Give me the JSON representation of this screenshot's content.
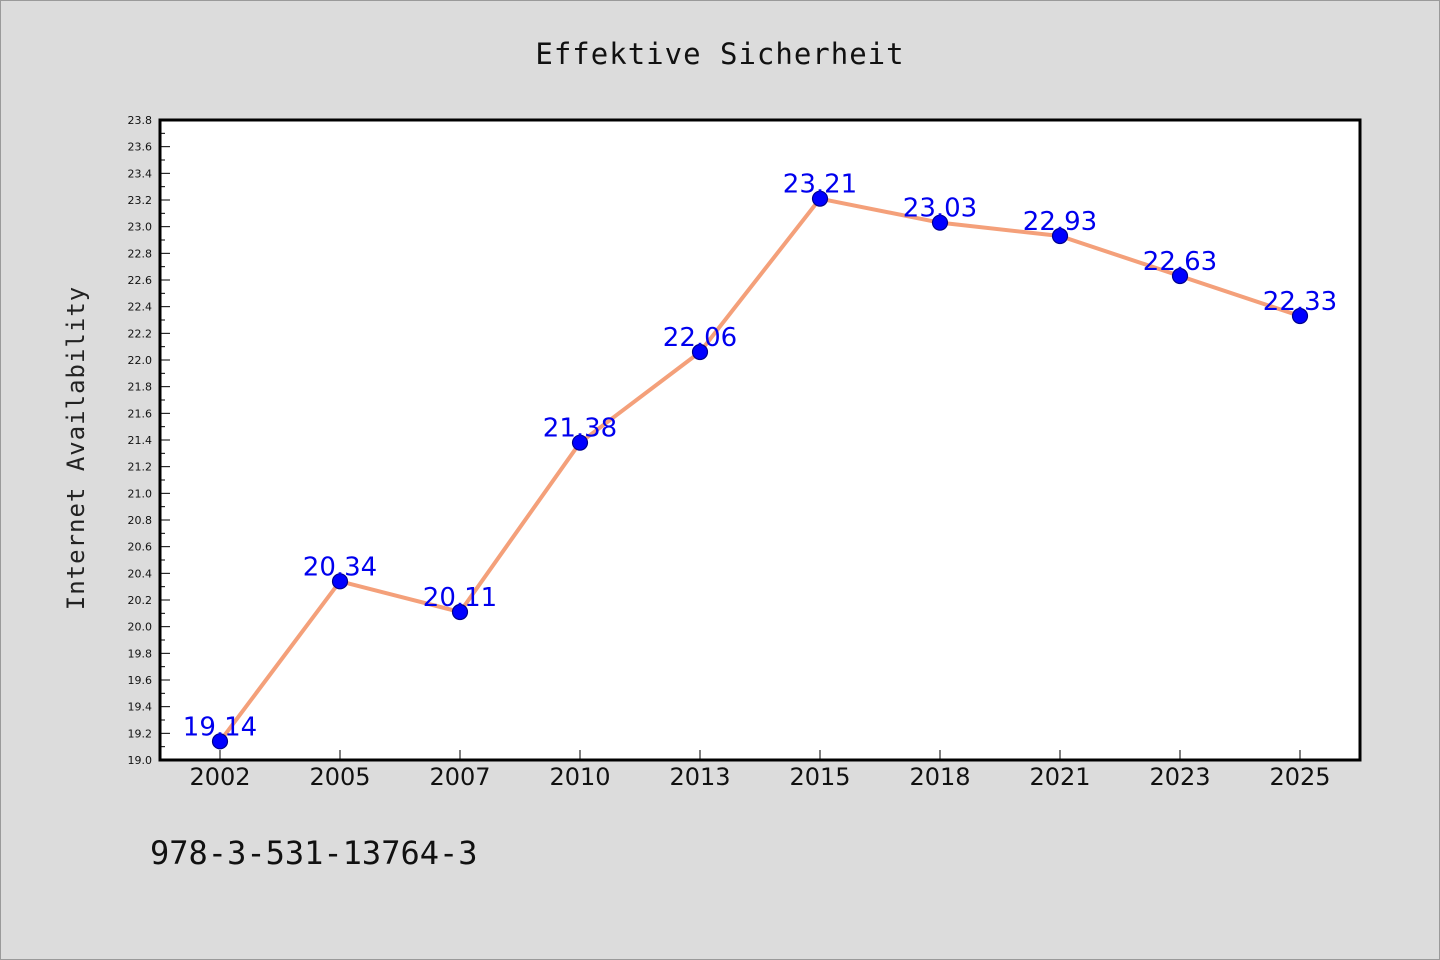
{
  "footer_text": "978-3-531-13764-3",
  "colors": {
    "background": "#dcdcdc",
    "plot_area": "#ffffff",
    "line": "#f4a07a",
    "marker_fill": "#0000ff",
    "marker_edge": "#00008b",
    "data_label": "#0000ee"
  },
  "chart_data": {
    "type": "line",
    "title": "Effektive Sicherheit",
    "xlabel": "",
    "ylabel": "Internet Availability",
    "categories": [
      "2002",
      "2005",
      "2007",
      "2010",
      "2013",
      "2015",
      "2018",
      "2021",
      "2023",
      "2025"
    ],
    "series": [
      {
        "values": [
          19.14,
          20.34,
          20.11,
          21.38,
          22.06,
          23.21,
          23.03,
          22.93,
          22.63,
          22.33
        ],
        "labels": [
          "19.14",
          "20.34",
          "20.11",
          "21.38",
          "22.06",
          "23.21",
          "23.03",
          "22.93",
          "22.63",
          "22.33"
        ]
      }
    ],
    "ylim": [
      19.0,
      23.8
    ],
    "yticks": [
      "19.0",
      "19.2",
      "19.4",
      "19.6",
      "19.8",
      "20.0",
      "20.2",
      "20.4",
      "20.6",
      "20.8",
      "21.0",
      "21.2",
      "21.4",
      "21.6",
      "21.8",
      "22.0",
      "22.2",
      "22.4",
      "22.6",
      "22.8",
      "23.0",
      "23.2",
      "23.4",
      "23.6",
      "23.8"
    ],
    "grid": false,
    "legend": "none"
  }
}
